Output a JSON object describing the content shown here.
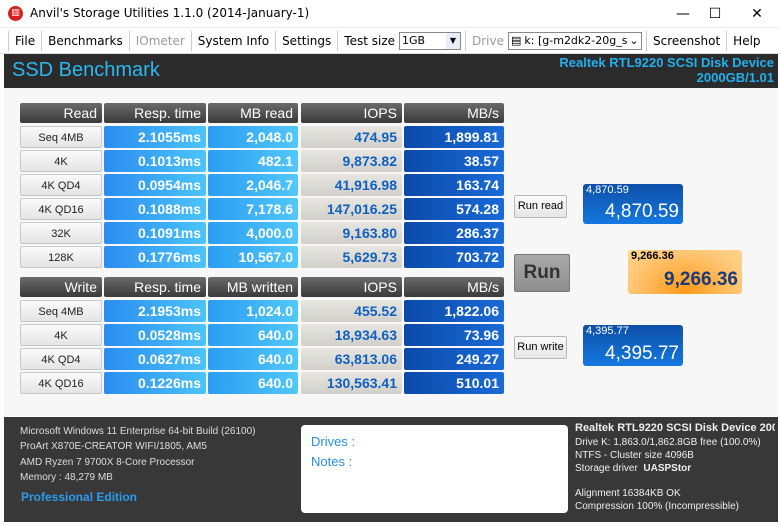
{
  "window": {
    "title": "Anvil's Storage Utilities 1.1.0 (2014-January-1)",
    "minimize": "—",
    "maximize": "☐",
    "close": "✕"
  },
  "toolbar": {
    "file": "File",
    "benchmarks": "Benchmarks",
    "iometer": "IOmeter",
    "system_info": "System Info",
    "settings": "Settings",
    "test_size_label": "Test size",
    "test_size_value": "1GB",
    "drive_label": "Drive",
    "drive_value": "k: [g-m2dk2-20g_san",
    "screenshot": "Screenshot",
    "help": "Help"
  },
  "header": {
    "title": "SSD Benchmark",
    "device": "Realtek RTL9220 SCSI Disk Device",
    "device_info": "2000GB/1.01"
  },
  "read": {
    "headers": [
      "Read",
      "Resp. time",
      "MB read",
      "IOPS",
      "MB/s"
    ],
    "rows": [
      [
        "Seq 4MB",
        "2.1055ms",
        "2,048.0",
        "474.95",
        "1,899.81"
      ],
      [
        "4K",
        "0.1013ms",
        "482.1",
        "9,873.82",
        "38.57"
      ],
      [
        "4K QD4",
        "0.0954ms",
        "2,046.7",
        "41,916.98",
        "163.74"
      ],
      [
        "4K QD16",
        "0.1088ms",
        "7,178.6",
        "147,016.25",
        "574.28"
      ],
      [
        "32K",
        "0.1091ms",
        "4,000.0",
        "9,163.80",
        "286.37"
      ],
      [
        "128K",
        "0.1776ms",
        "10,567.0",
        "5,629.73",
        "703.72"
      ]
    ]
  },
  "write": {
    "headers": [
      "Write",
      "Resp. time",
      "MB written",
      "IOPS",
      "MB/s"
    ],
    "rows": [
      [
        "Seq 4MB",
        "2.1953ms",
        "1,024.0",
        "455.52",
        "1,822.06"
      ],
      [
        "4K",
        "0.0528ms",
        "640.0",
        "18,934.63",
        "73.96"
      ],
      [
        "4K QD4",
        "0.0627ms",
        "640.0",
        "63,813.06",
        "249.27"
      ],
      [
        "4K QD16",
        "0.1226ms",
        "640.0",
        "130,563.41",
        "510.01"
      ]
    ]
  },
  "buttons": {
    "run_read": "Run read",
    "run": "Run",
    "run_write": "Run write"
  },
  "scores": {
    "read": "4,870.59",
    "total": "9,266.36",
    "write": "4,395.77"
  },
  "footer": {
    "os": "Microsoft Windows 11 Enterprise 64-bit Build (26100)",
    "board": "ProArt X870E-CREATOR WIFI/1805, AM5",
    "cpu": "AMD Ryzen 7 9700X 8-Core Processor",
    "memory": "Memory : 48,279 MB",
    "edition": "Professional Edition",
    "drives_label": "Drives :",
    "notes_label": "Notes :",
    "device": "Realtek RTL9220 SCSI Disk Device 200",
    "drive_free": "Drive K: 1,863.0/1,862.8GB free (100.0%)",
    "fs": "NTFS - Cluster size 4096B",
    "driver_label": "Storage driver",
    "driver": "UASPStor",
    "alignment": "Alignment 16384KB OK",
    "compression": "Compression 100% (Incompressible)"
  },
  "colors": {
    "accent": "#2ab8f0",
    "score_total": "#ffb040",
    "score_blue": "#1470d8"
  }
}
